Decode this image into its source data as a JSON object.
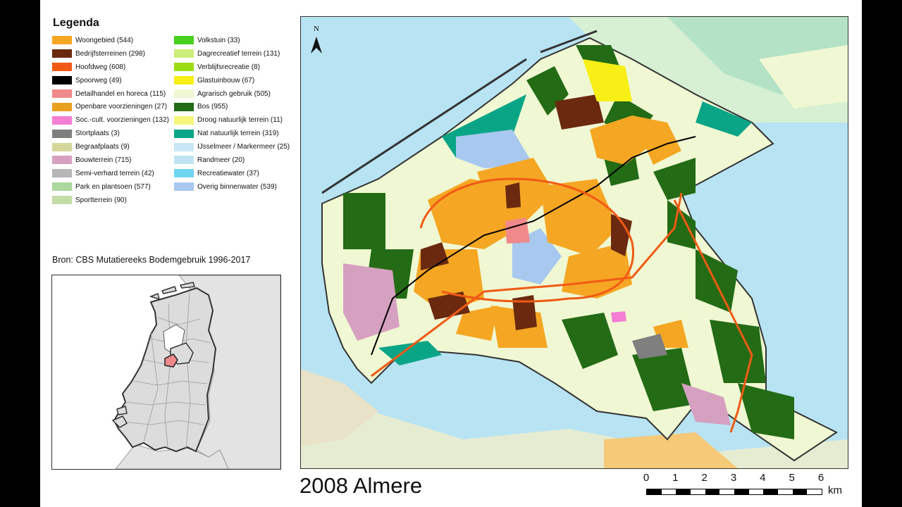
{
  "legend": {
    "title": "Legenda",
    "col1": [
      {
        "label": "Woongebied (544)",
        "color": "#f5a623"
      },
      {
        "label": "Bedrijfsterreinen (298)",
        "color": "#6b2a10"
      },
      {
        "label": "Hoofdweg (608)",
        "color": "#f05a14"
      },
      {
        "label": "Spoorweg (49)",
        "color": "#000000"
      },
      {
        "label": "Detailhandel en horeca (115)",
        "color": "#f08a8a"
      },
      {
        "label": "Openbare voorzieningen (27)",
        "color": "#e8a01e"
      },
      {
        "label": "Soc.-cult. voorzieningen (132)",
        "color": "#f47ed4"
      },
      {
        "label": "Stortplaats (3)",
        "color": "#7f7f7f"
      },
      {
        "label": "Begraafplaats (9)",
        "color": "#d4d69a"
      },
      {
        "label": "Bouwterrein (715)",
        "color": "#d6a1c0"
      },
      {
        "label": "Semi-verhard terrein (42)",
        "color": "#b6b6b6"
      },
      {
        "label": "Park en plantsoen (577)",
        "color": "#acd8a0"
      },
      {
        "label": "Sportterrein (90)",
        "color": "#c6dca8"
      }
    ],
    "col2": [
      {
        "label": "Volkstuin (33)",
        "color": "#48d01e"
      },
      {
        "label": "Dagrecreatief terrein (131)",
        "color": "#cdee7a"
      },
      {
        "label": "Verblijfsrecreatie (8)",
        "color": "#9cdc14"
      },
      {
        "label": "Glastuinbouw (67)",
        "color": "#f7ef16"
      },
      {
        "label": "Agrarisch gebruik (505)",
        "color": "#eff8d2"
      },
      {
        "label": "Bos (955)",
        "color": "#236b14"
      },
      {
        "label": "Droog natuurlijk terrein (11)",
        "color": "#f6f57c"
      },
      {
        "label": "Nat natuurlijk terrein (319)",
        "color": "#0aa487"
      },
      {
        "label": "IJsselmeer / Markermeer (25)",
        "color": "#c8e6f6"
      },
      {
        "label": "Randmeer (20)",
        "color": "#bfe3f1"
      },
      {
        "label": "Recreatiewater (37)",
        "color": "#70d5f0"
      },
      {
        "label": "Overig binnenwater (539)",
        "color": "#a9c8f0"
      }
    ]
  },
  "source": "Bron: CBS Mutatiereeks Bodemgebruik 1996-2017",
  "map": {
    "title": "2008 Almere",
    "north_label": "N",
    "scale": {
      "ticks": [
        "0",
        "1",
        "2",
        "3",
        "4",
        "5",
        "6"
      ],
      "unit": "km"
    }
  },
  "colors": {
    "water": "#b7e3f3",
    "agriculture": "#eff8d2",
    "forest": "#236b14",
    "residential": "#f5a623",
    "industrial": "#6b2a10",
    "road": "#f05a14",
    "inset_land": "#d9d9d9",
    "inset_highlight": "#f08a8a"
  }
}
